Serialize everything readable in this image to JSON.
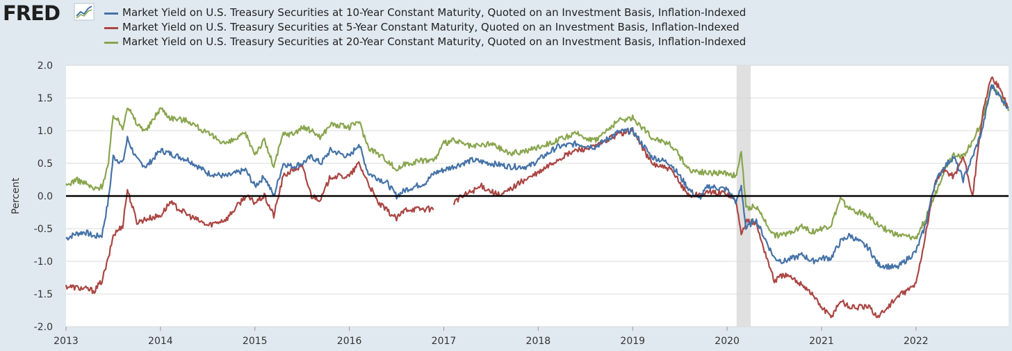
{
  "brand": {
    "logo_text": "FRED",
    "logo_icon": "chart-line-icon"
  },
  "colors": {
    "background": "#e1e9f0",
    "plot_bg": "#ffffff",
    "grid": "#d9d9d9",
    "recession": "#e0e0e0",
    "zero_line": "#000000",
    "series_10y": "#4572a7",
    "series_5y": "#aa4643",
    "series_20y": "#89a54e"
  },
  "chart_data": {
    "type": "line",
    "title": "",
    "xlabel": "",
    "ylabel": "Percent",
    "xlim": [
      2013.0,
      2022.98
    ],
    "ylim": [
      -2.0,
      2.0
    ],
    "x_ticks": [
      "2013",
      "2014",
      "2015",
      "2016",
      "2017",
      "2018",
      "2019",
      "2020",
      "2021",
      "2022"
    ],
    "y_ticks": [
      "2.0",
      "1.5",
      "1.0",
      "0.5",
      "0.0",
      "-0.5",
      "-1.0",
      "-1.5",
      "-2.0"
    ],
    "grid": true,
    "reference_line": 0.0,
    "shaded_regions": [
      {
        "label": "recession",
        "start": 2020.1,
        "end": 2020.25
      }
    ],
    "legend_position": "top",
    "series": [
      {
        "name": "Market Yield on U.S. Treasury Securities at 10-Year Constant Maturity, Quoted on an Investment Basis, Inflation-Indexed",
        "key": "10y",
        "x": [
          2013.0,
          2013.1,
          2013.2,
          2013.3,
          2013.38,
          2013.45,
          2013.5,
          2013.6,
          2013.65,
          2013.75,
          2013.85,
          2014.0,
          2014.1,
          2014.3,
          2014.5,
          2014.7,
          2014.9,
          2015.0,
          2015.1,
          2015.2,
          2015.3,
          2015.4,
          2015.5,
          2015.6,
          2015.7,
          2015.8,
          2016.0,
          2016.1,
          2016.2,
          2016.4,
          2016.5,
          2016.6,
          2016.8,
          2016.9,
          2017.0,
          2017.1,
          2017.3,
          2017.5,
          2017.7,
          2017.9,
          2018.0,
          2018.2,
          2018.4,
          2018.6,
          2018.85,
          2019.0,
          2019.2,
          2019.4,
          2019.6,
          2019.7,
          2019.8,
          2020.0,
          2020.1,
          2020.15,
          2020.2,
          2020.3,
          2020.5,
          2020.6,
          2020.8,
          2020.9,
          2021.0,
          2021.1,
          2021.2,
          2021.3,
          2021.5,
          2021.6,
          2021.8,
          2022.0,
          2022.1,
          2022.2,
          2022.3,
          2022.4,
          2022.5,
          2022.6,
          2022.7,
          2022.8,
          2022.9,
          2022.98
        ],
        "y": [
          -0.65,
          -0.58,
          -0.55,
          -0.62,
          -0.6,
          -0.05,
          0.6,
          0.5,
          0.88,
          0.55,
          0.45,
          0.7,
          0.65,
          0.55,
          0.35,
          0.3,
          0.4,
          0.15,
          0.3,
          0.0,
          0.5,
          0.45,
          0.5,
          0.6,
          0.5,
          0.7,
          0.6,
          0.8,
          0.35,
          0.2,
          0.0,
          0.1,
          0.2,
          0.35,
          0.4,
          0.45,
          0.55,
          0.5,
          0.45,
          0.45,
          0.55,
          0.75,
          0.8,
          0.75,
          0.98,
          1.0,
          0.6,
          0.5,
          0.1,
          -0.05,
          0.15,
          0.1,
          -0.1,
          0.15,
          -0.5,
          -0.35,
          -0.95,
          -1.0,
          -0.9,
          -1.0,
          -0.95,
          -0.95,
          -0.7,
          -0.6,
          -0.8,
          -1.05,
          -1.1,
          -0.85,
          -0.45,
          0.2,
          0.45,
          0.6,
          0.25,
          0.6,
          1.0,
          1.7,
          1.5,
          1.35
        ]
      },
      {
        "name": "Market Yield on U.S. Treasury Securities at 5-Year Constant Maturity, Quoted on an Investment Basis, Inflation-Indexed",
        "key": "5y",
        "x": [
          2013.0,
          2013.1,
          2013.2,
          2013.3,
          2013.38,
          2013.45,
          2013.5,
          2013.6,
          2013.65,
          2013.75,
          2013.85,
          2014.0,
          2014.1,
          2014.3,
          2014.5,
          2014.7,
          2014.9,
          2015.0,
          2015.1,
          2015.2,
          2015.3,
          2015.4,
          2015.5,
          2015.6,
          2015.7,
          2015.8,
          2016.0,
          2016.1,
          2016.2,
          2016.3,
          2016.5,
          2016.6,
          2016.8,
          2016.9,
          2017.0,
          2017.1,
          2017.2,
          2017.4,
          2017.6,
          2017.8,
          2018.0,
          2018.2,
          2018.4,
          2018.6,
          2018.85,
          2019.0,
          2019.2,
          2019.4,
          2019.6,
          2019.8,
          2020.0,
          2020.1,
          2020.15,
          2020.2,
          2020.3,
          2020.5,
          2020.6,
          2020.8,
          2020.9,
          2021.0,
          2021.1,
          2021.2,
          2021.3,
          2021.5,
          2021.6,
          2021.8,
          2022.0,
          2022.1,
          2022.2,
          2022.3,
          2022.4,
          2022.5,
          2022.55,
          2022.6,
          2022.7,
          2022.8,
          2022.9,
          2022.98
        ],
        "y": [
          -1.38,
          -1.4,
          -1.42,
          -1.45,
          -1.3,
          -0.95,
          -0.6,
          -0.45,
          0.1,
          -0.4,
          -0.35,
          -0.3,
          -0.1,
          -0.3,
          -0.45,
          -0.35,
          0.0,
          -0.1,
          0.0,
          -0.3,
          0.3,
          0.4,
          0.45,
          0.0,
          -0.05,
          0.3,
          0.3,
          0.5,
          0.2,
          -0.1,
          -0.35,
          -0.2,
          -0.2,
          -0.2,
          null,
          -0.1,
          0.0,
          0.15,
          0.0,
          0.2,
          0.35,
          0.55,
          0.7,
          0.75,
          0.95,
          1.0,
          0.5,
          0.4,
          0.0,
          0.05,
          0.05,
          -0.1,
          -0.6,
          -0.4,
          -0.4,
          -1.3,
          -1.2,
          -1.35,
          -1.5,
          -1.7,
          -1.85,
          -1.6,
          -1.7,
          -1.7,
          -1.85,
          -1.55,
          -1.35,
          -0.6,
          0.2,
          0.4,
          0.3,
          0.6,
          0.3,
          0.0,
          1.2,
          1.85,
          1.6,
          1.35
        ]
      },
      {
        "name": "Market Yield on U.S. Treasury Securities at 20-Year Constant Maturity, Quoted on an Investment Basis, Inflation-Indexed",
        "key": "20y",
        "x": [
          2013.0,
          2013.1,
          2013.2,
          2013.3,
          2013.38,
          2013.45,
          2013.5,
          2013.6,
          2013.65,
          2013.75,
          2013.85,
          2014.0,
          2014.1,
          2014.3,
          2014.5,
          2014.7,
          2014.9,
          2015.0,
          2015.1,
          2015.2,
          2015.3,
          2015.4,
          2015.5,
          2015.6,
          2015.7,
          2015.8,
          2016.0,
          2016.1,
          2016.2,
          2016.4,
          2016.5,
          2016.6,
          2016.8,
          2016.9,
          2017.0,
          2017.1,
          2017.3,
          2017.5,
          2017.7,
          2017.9,
          2018.0,
          2018.2,
          2018.4,
          2018.6,
          2018.85,
          2019.0,
          2019.2,
          2019.4,
          2019.6,
          2019.8,
          2020.0,
          2020.1,
          2020.15,
          2020.2,
          2020.3,
          2020.5,
          2020.6,
          2020.8,
          2020.9,
          2021.0,
          2021.1,
          2021.2,
          2021.3,
          2021.5,
          2021.6,
          2021.8,
          2022.0,
          2022.1,
          2022.2,
          2022.3,
          2022.4,
          2022.5,
          2022.6,
          2022.7,
          2022.8,
          2022.9,
          2022.98
        ],
        "y": [
          0.15,
          0.25,
          0.2,
          0.1,
          0.15,
          0.5,
          1.25,
          1.05,
          1.38,
          1.1,
          1.0,
          1.35,
          1.2,
          1.15,
          0.95,
          0.8,
          0.95,
          0.65,
          0.85,
          0.45,
          0.95,
          0.95,
          1.05,
          1.0,
          0.9,
          1.1,
          1.05,
          1.15,
          0.75,
          0.55,
          0.4,
          0.5,
          0.55,
          0.55,
          0.8,
          0.85,
          0.75,
          0.8,
          0.65,
          0.7,
          0.75,
          0.85,
          0.95,
          0.85,
          1.15,
          1.2,
          0.9,
          0.8,
          0.4,
          0.35,
          0.35,
          0.3,
          0.7,
          -0.2,
          -0.15,
          -0.6,
          -0.6,
          -0.45,
          -0.55,
          -0.5,
          -0.45,
          -0.05,
          -0.2,
          -0.3,
          -0.45,
          -0.6,
          -0.65,
          -0.35,
          0.0,
          0.4,
          0.65,
          0.6,
          0.85,
          1.15,
          1.7,
          1.5,
          1.3
        ]
      }
    ]
  }
}
